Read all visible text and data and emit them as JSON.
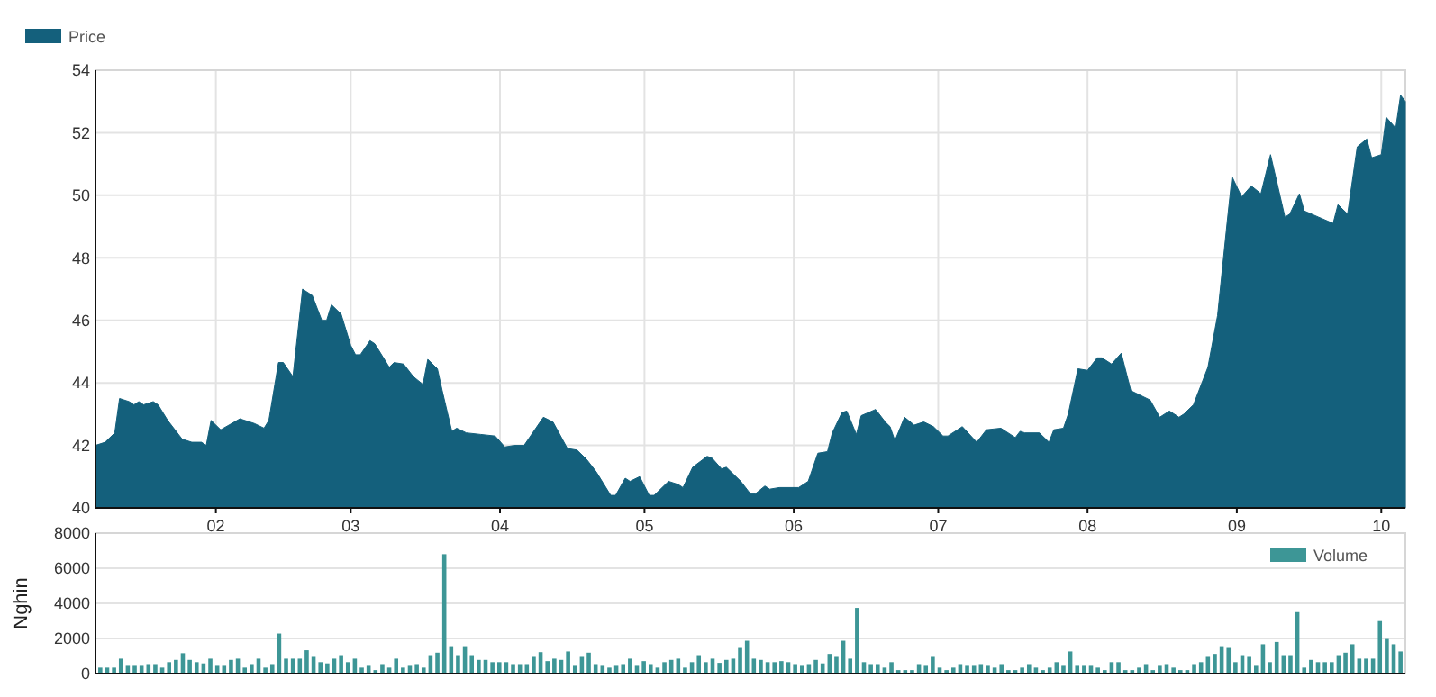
{
  "chart_data": [
    {
      "type": "area",
      "xlim": [
        "--01-07",
        "--10-06"
      ],
      "ylim": [
        40,
        54
      ],
      "yticks": [
        40,
        42,
        44,
        46,
        48,
        50,
        52,
        54
      ],
      "xticks": [
        {
          "value": "--02-01",
          "label": "02"
        },
        {
          "value": "--03-01",
          "label": "03"
        },
        {
          "value": "--04-01",
          "label": "04"
        },
        {
          "value": "--05-01",
          "label": "05"
        },
        {
          "value": "--06-01",
          "label": "06"
        },
        {
          "value": "--07-01",
          "label": "07"
        },
        {
          "value": "--08-01",
          "label": "08"
        },
        {
          "value": "--09-01",
          "label": "09"
        },
        {
          "value": "--10-01",
          "label": "10"
        }
      ],
      "grid": true,
      "legend": "top left",
      "series": [
        {
          "name": "Price",
          "color": "#14607c",
          "x": [
            "--01-07",
            "--01-09",
            "--01-11",
            "--01-12",
            "--01-14",
            "--01-15",
            "--01-16",
            "--01-17",
            "--01-19",
            "--01-20",
            "--01-22",
            "--01-25",
            "--01-27",
            "--01-29",
            "--01-30",
            "--01-31",
            "--02-02",
            "--02-06",
            "--02-09",
            "--02-11",
            "--02-12",
            "--02-14",
            "--02-15",
            "--02-17",
            "--02-19",
            "--02-21",
            "--02-23",
            "--02-24",
            "--02-25",
            "--02-27",
            "--03-01",
            "--03-02",
            "--03-03",
            "--03-05",
            "--03-06",
            "--03-09",
            "--03-10",
            "--03-12",
            "--03-14",
            "--03-16",
            "--03-17",
            "--03-19",
            "--03-20",
            "--03-22",
            "--03-23",
            "--03-25",
            "--03-28",
            "--03-31",
            "--04-02",
            "--04-04",
            "--04-06",
            "--04-10",
            "--04-12",
            "--04-15",
            "--04-17",
            "--04-19",
            "--04-21",
            "--04-24",
            "--04-25",
            "--04-27",
            "--04-28",
            "--04-30",
            "--05-02",
            "--05-03",
            "--05-06",
            "--05-08",
            "--05-09",
            "--05-11",
            "--05-14",
            "--05-15",
            "--05-17",
            "--05-18",
            "--05-21",
            "--05-23",
            "--05-24",
            "--05-26",
            "--05-27",
            "--05-29",
            "--06-02",
            "--06-04",
            "--06-06",
            "--06-08",
            "--06-09",
            "--06-11",
            "--06-12",
            "--06-14",
            "--06-15",
            "--06-18",
            "--06-20",
            "--06-21",
            "--06-22",
            "--06-24",
            "--06-26",
            "--06-28",
            "--06-30",
            "--07-02",
            "--07-03",
            "--07-06",
            "--07-09",
            "--07-11",
            "--07-14",
            "--07-17",
            "--07-18",
            "--07-19",
            "--07-22",
            "--07-24",
            "--07-25",
            "--07-27",
            "--07-28",
            "--07-30",
            "--08-01",
            "--08-03",
            "--08-04",
            "--08-06",
            "--08-08",
            "--08-10",
            "--08-14",
            "--08-16",
            "--08-18",
            "--08-20",
            "--08-21",
            "--08-23",
            "--08-26",
            "--08-28",
            "--08-30",
            "--08-31",
            "--09-02",
            "--09-04",
            "--09-06",
            "--09-08",
            "--09-11",
            "--09-12",
            "--09-14",
            "--09-15",
            "--09-18",
            "--09-21",
            "--09-22",
            "--09-24",
            "--09-26",
            "--09-28",
            "--09-29",
            "--10-01",
            "--10-02",
            "--10-04",
            "--10-05",
            "--10-06"
          ],
          "values": [
            42.0,
            42.1,
            42.4,
            43.5,
            43.4,
            43.3,
            43.4,
            43.3,
            43.4,
            43.3,
            42.8,
            42.2,
            42.1,
            42.1,
            42.0,
            42.8,
            42.5,
            42.85,
            42.7,
            42.55,
            42.8,
            44.65,
            44.65,
            44.2,
            47.0,
            46.8,
            46.0,
            46.0,
            46.5,
            46.2,
            45.2,
            44.9,
            44.9,
            45.35,
            45.25,
            44.5,
            44.65,
            44.6,
            44.2,
            43.95,
            44.75,
            44.45,
            43.75,
            42.45,
            42.55,
            42.4,
            42.35,
            42.3,
            41.95,
            42.0,
            42.0,
            42.9,
            42.75,
            41.9,
            41.85,
            41.55,
            41.15,
            40.4,
            40.4,
            40.95,
            40.85,
            41.0,
            40.4,
            40.4,
            40.85,
            40.75,
            40.65,
            41.3,
            41.65,
            41.6,
            41.25,
            41.3,
            40.85,
            40.45,
            40.45,
            40.7,
            40.6,
            40.65,
            40.65,
            40.85,
            41.75,
            41.8,
            42.4,
            43.05,
            43.1,
            42.35,
            42.95,
            43.15,
            42.75,
            42.6,
            42.15,
            42.9,
            42.65,
            42.75,
            42.6,
            42.3,
            42.3,
            42.6,
            42.1,
            42.5,
            42.55,
            42.25,
            42.45,
            42.4,
            42.4,
            42.1,
            42.5,
            42.55,
            43.0,
            44.45,
            44.4,
            44.8,
            44.8,
            44.6,
            44.95,
            43.75,
            43.45,
            42.9,
            43.1,
            42.9,
            43.0,
            43.3,
            44.5,
            46.15,
            49.15,
            50.6,
            49.95,
            50.3,
            50.05,
            51.3,
            49.3,
            49.4,
            50.05,
            49.5,
            49.3,
            49.1,
            49.7,
            49.4,
            51.55,
            51.8,
            51.2,
            51.3,
            52.5,
            52.15,
            53.2,
            53.0
          ]
        }
      ]
    },
    {
      "type": "bar",
      "ylabel": "Nghin",
      "ylim": [
        0,
        8000
      ],
      "yticks": [
        0,
        2000,
        4000,
        6000,
        8000
      ],
      "grid": "y",
      "tick_labels": "y",
      "legend": "top right",
      "categories": [
        null,
        null,
        null,
        null,
        null,
        null,
        null,
        null,
        null,
        null,
        null,
        null,
        null,
        null,
        null,
        null,
        null,
        null,
        null,
        null,
        null,
        null,
        null,
        null,
        null,
        null,
        null,
        null,
        null,
        null,
        null,
        null,
        null,
        null,
        null,
        null,
        null,
        null,
        null,
        null,
        null,
        null,
        null,
        null,
        null,
        null,
        null,
        null,
        null,
        null,
        null,
        null,
        null,
        null,
        null,
        null,
        null,
        null,
        null,
        null,
        null,
        null,
        null,
        null,
        null,
        null,
        null,
        null,
        null,
        null,
        null,
        null,
        null,
        null,
        null,
        null,
        null,
        null,
        null,
        null,
        null,
        null,
        null,
        null,
        null,
        null,
        null,
        null,
        null,
        null,
        null,
        null,
        null,
        null,
        null,
        null,
        null,
        null,
        null,
        null,
        null,
        null,
        null,
        null,
        null,
        null,
        null,
        null,
        null,
        null,
        null,
        null,
        null,
        null,
        null,
        null,
        null,
        null,
        null,
        null,
        null,
        null,
        null,
        null,
        null,
        null,
        null,
        null,
        null,
        null,
        null,
        null,
        null,
        null,
        null,
        null,
        null,
        null,
        null,
        null,
        null,
        null,
        null,
        null,
        null,
        null,
        null,
        null,
        null,
        null,
        null,
        null,
        null,
        null,
        null,
        null,
        null,
        null,
        null,
        null,
        null,
        null,
        null,
        null,
        null,
        null,
        null,
        null,
        null,
        null,
        null,
        null,
        null,
        null,
        null,
        null,
        null,
        null,
        null,
        null,
        null,
        null,
        null,
        null,
        null,
        null,
        null,
        null,
        null,
        null
      ],
      "series": [
        {
          "name": "Volume",
          "color": "#3d9696",
          "values": [
            340,
            340,
            340,
            850,
            440,
            440,
            440,
            540,
            540,
            340,
            650,
            780,
            1160,
            780,
            650,
            580,
            850,
            440,
            440,
            780,
            850,
            340,
            540,
            850,
            340,
            540,
            2280,
            850,
            850,
            850,
            1330,
            950,
            650,
            580,
            850,
            1050,
            650,
            850,
            340,
            440,
            200,
            540,
            340,
            850,
            340,
            440,
            540,
            340,
            1050,
            1190,
            6800,
            1560,
            1050,
            1560,
            1050,
            780,
            780,
            650,
            650,
            650,
            540,
            540,
            540,
            950,
            1220,
            710,
            850,
            780,
            1260,
            440,
            950,
            1190,
            540,
            440,
            340,
            440,
            540,
            850,
            440,
            710,
            540,
            340,
            650,
            780,
            850,
            340,
            650,
            1050,
            650,
            850,
            610,
            780,
            850,
            1460,
            1870,
            850,
            780,
            650,
            650,
            710,
            650,
            540,
            440,
            540,
            780,
            580,
            1120,
            950,
            1870,
            850,
            3740,
            650,
            540,
            540,
            340,
            650,
            200,
            200,
            200,
            540,
            440,
            950,
            340,
            200,
            340,
            540,
            440,
            440,
            540,
            440,
            340,
            540,
            200,
            200,
            340,
            540,
            340,
            200,
            340,
            650,
            440,
            1260,
            440,
            440,
            440,
            340,
            200,
            650,
            650,
            200,
            200,
            340,
            540,
            200,
            440,
            540,
            340,
            200,
            200,
            540,
            650,
            950,
            1120,
            1560,
            1460,
            650,
            1050,
            950,
            440,
            1670,
            650,
            1800,
            1050,
            1050,
            3500,
            340,
            780,
            650,
            650,
            650,
            1050,
            1190,
            1670,
            850,
            850,
            850,
            2990,
            1970,
            1670,
            1260
          ]
        }
      ]
    }
  ]
}
